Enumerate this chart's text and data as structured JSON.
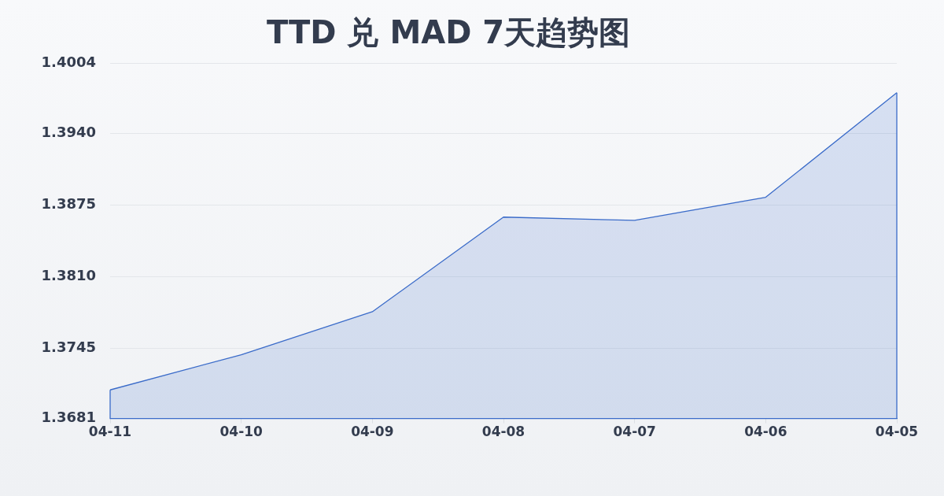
{
  "chart_data": {
    "type": "area",
    "title": "TTD 兑 MAD 7天趋势图",
    "categories": [
      "04-11",
      "04-10",
      "04-09",
      "04-08",
      "04-07",
      "04-06",
      "04-05"
    ],
    "series": [
      {
        "color": "#3a6bc9",
        "values": [
          1.3707,
          1.3739,
          1.3778,
          1.3864,
          1.3861,
          1.3882,
          1.3977
        ]
      }
    ],
    "ylim": [
      1.3681,
      1.4004
    ],
    "yticks": [
      1.3681,
      {
        "value": 1.3745,
        "label": "1.3745"
      },
      {
        "value": 1.381,
        "label": "1.3810"
      },
      1.3875,
      {
        "value": 1.394,
        "label": "1.3940"
      },
      1.4004
    ],
    "grid": "y",
    "marker": "none"
  }
}
